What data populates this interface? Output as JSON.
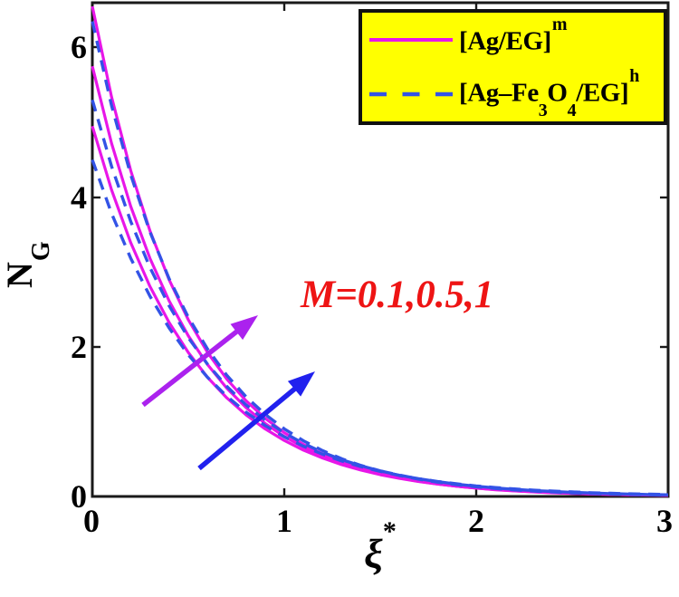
{
  "chart_data": {
    "type": "line",
    "title": "",
    "xlabel": {
      "base": "ξ",
      "sup": "*"
    },
    "ylabel": {
      "base": "N",
      "sub": "G"
    },
    "xlim": [
      0,
      3
    ],
    "ylim": [
      0,
      6.6
    ],
    "xticks": [
      "0",
      "1",
      "2",
      "3"
    ],
    "yticks": [
      "0",
      "2",
      "4",
      "6"
    ],
    "grid": "off",
    "legend_position": "upper right",
    "x": [
      0,
      0.1,
      0.2,
      0.3,
      0.4,
      0.5,
      0.6,
      0.7,
      0.8,
      0.9,
      1,
      1.1,
      1.2,
      1.3,
      1.4,
      1.5,
      1.6,
      1.7,
      1.8,
      1.9,
      2,
      2.1,
      2.2,
      2.3,
      2.4,
      2.5,
      2.6,
      2.7,
      2.8,
      2.9,
      3
    ],
    "series": [
      {
        "name": "[Ag/EG]m, M=0.1",
        "M": 0.1,
        "line_style": "solid",
        "color": "#E816E8",
        "values": [
          4.95,
          4.098,
          3.392,
          2.808,
          2.325,
          1.924,
          1.593,
          1.319,
          1.092,
          0.904,
          0.748,
          0.619,
          0.513,
          0.424,
          0.351,
          0.291,
          0.241,
          0.199,
          0.165,
          0.137,
          0.113,
          0.094,
          0.078,
          0.064,
          0.053,
          0.044,
          0.037,
          0.03,
          0.025,
          0.021,
          0.017
        ]
      },
      {
        "name": "[Ag/EG]m, M=0.5",
        "M": 0.5,
        "line_style": "solid",
        "color": "#E816E8",
        "values": [
          5.75,
          4.722,
          3.878,
          3.184,
          2.615,
          2.147,
          1.763,
          1.448,
          1.189,
          0.976,
          0.802,
          0.659,
          0.541,
          0.444,
          0.365,
          0.3,
          0.246,
          0.202,
          0.166,
          0.136,
          0.112,
          0.092,
          0.075,
          0.062,
          0.051,
          0.042,
          0.034,
          0.028,
          0.023,
          0.019,
          0.016
        ]
      },
      {
        "name": "[Ag/EG]m, M=1",
        "M": 1,
        "line_style": "solid",
        "color": "#E816E8",
        "values": [
          6.55,
          5.342,
          4.356,
          3.552,
          2.897,
          2.362,
          1.926,
          1.571,
          1.281,
          1.045,
          0.852,
          0.695,
          0.567,
          0.462,
          0.377,
          0.307,
          0.251,
          0.204,
          0.167,
          0.136,
          0.111,
          0.09,
          0.074,
          0.06,
          0.049,
          0.04,
          0.033,
          0.027,
          0.022,
          0.018,
          0.014
        ]
      },
      {
        "name": "[Ag-Fe3O4/EG]h, M=0.1",
        "M": 0.1,
        "line_style": "dashed",
        "color": "#3353E6",
        "values": [
          4.5,
          3.785,
          3.184,
          2.678,
          2.252,
          1.894,
          1.593,
          1.34,
          1.127,
          0.948,
          0.797,
          0.671,
          0.564,
          0.474,
          0.399,
          0.336,
          0.282,
          0.237,
          0.2,
          0.168,
          0.141,
          0.119,
          0.1,
          0.084,
          0.071,
          0.06,
          0.05,
          0.042,
          0.035,
          0.03,
          0.025
        ]
      },
      {
        "name": "[Ag-Fe3O4/EG]h, M=0.5",
        "M": 0.5,
        "line_style": "dashed",
        "color": "#3353E6",
        "values": [
          5.3,
          4.414,
          3.676,
          3.061,
          2.549,
          2.123,
          1.768,
          1.472,
          1.226,
          1.021,
          0.85,
          0.708,
          0.59,
          0.491,
          0.409,
          0.341,
          0.284,
          0.236,
          0.197,
          0.164,
          0.137,
          0.114,
          0.095,
          0.079,
          0.066,
          0.055,
          0.046,
          0.038,
          0.032,
          0.026,
          0.022
        ]
      },
      {
        "name": "[Ag-Fe3O4/EG]h, M=1",
        "M": 1,
        "line_style": "dashed",
        "color": "#3353E6",
        "values": [
          6.35,
          5.225,
          4.299,
          3.537,
          2.911,
          2.395,
          1.971,
          1.622,
          1.334,
          1.098,
          0.903,
          0.743,
          0.612,
          0.503,
          0.414,
          0.341,
          0.28,
          0.231,
          0.19,
          0.156,
          0.129,
          0.106,
          0.087,
          0.072,
          0.059,
          0.049,
          0.04,
          0.033,
          0.027,
          0.022,
          0.018
        ]
      }
    ],
    "annotation": {
      "text": "M=0.1,0.5,1",
      "color": "#EE1414"
    },
    "arrows": [
      {
        "name": "increase-direction-mono",
        "color": "#AB22EE"
      },
      {
        "name": "increase-direction-hybrid",
        "color": "#2121EE"
      }
    ],
    "frame_color": "#1A1A1A"
  },
  "legend": {
    "bg_color": "#FFFF00",
    "border_color": "#111111",
    "items": [
      {
        "parts": [
          "[Ag/EG]",
          "m"
        ]
      },
      {
        "parts": [
          "[Ag–Fe",
          "3",
          "O",
          "4",
          "/EG]",
          "h"
        ]
      }
    ]
  }
}
